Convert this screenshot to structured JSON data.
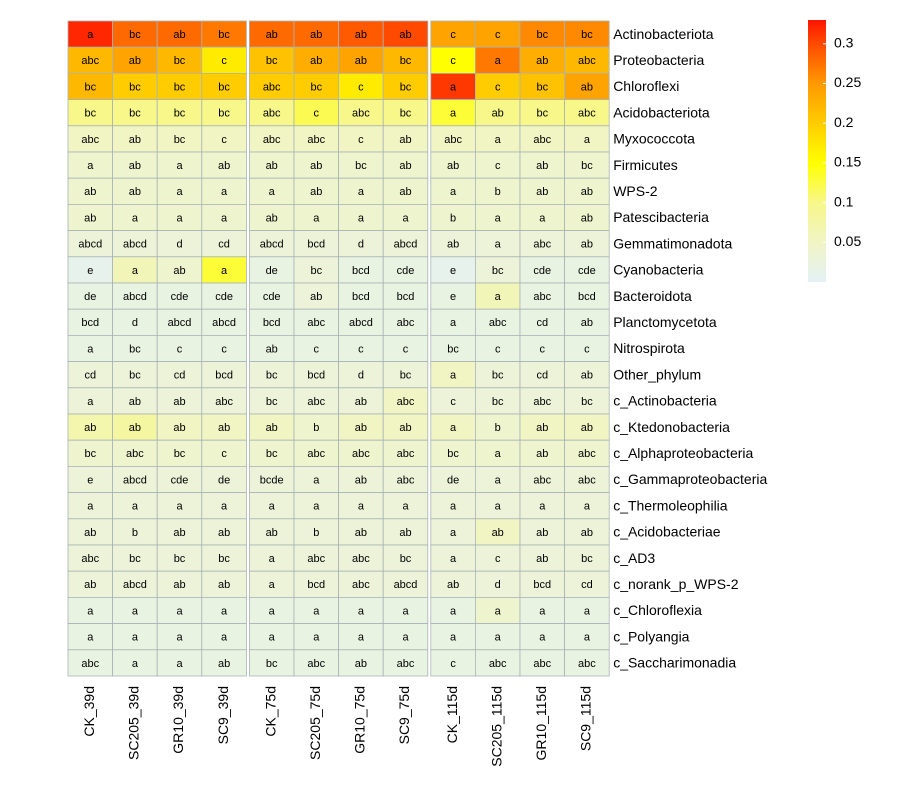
{
  "chart_data": {
    "type": "heatmap",
    "rows": [
      "Actinobacteriota",
      "Proteobacteria",
      "Chloroflexi",
      "Acidobacteriota",
      "Myxococcota",
      "Firmicutes",
      "WPS-2",
      "Patescibacteria",
      "Gemmatimonadota",
      "Cyanobacteria",
      "Bacteroidota",
      "Planctomycetota",
      "Nitrospirota",
      "Other_phylum",
      "c_Actinobacteria",
      "c_Ktedonobacteria",
      "c_Alphaproteobacteria",
      "c_Gammaproteobacteria",
      "c_Thermoleophilia",
      "c_Acidobacteriae",
      "c_AD3",
      "c_norank_p_WPS-2",
      "c_Chloroflexia",
      "c_Polyangia",
      "c_Saccharimonadia"
    ],
    "columns": [
      "CK_39d",
      "SC205_39d",
      "GR10_39d",
      "SC9_39d",
      "CK_75d",
      "SC205_75d",
      "GR10_75d",
      "SC9_75d",
      "CK_115d",
      "SC205_115d",
      "GR10_115d",
      "SC9_115d"
    ],
    "values": [
      [
        0.32,
        0.28,
        0.28,
        0.27,
        0.28,
        0.28,
        0.29,
        0.3,
        0.24,
        0.24,
        0.26,
        0.26
      ],
      [
        0.22,
        0.24,
        0.22,
        0.17,
        0.21,
        0.23,
        0.24,
        0.22,
        0.15,
        0.27,
        0.23,
        0.22
      ],
      [
        0.22,
        0.2,
        0.2,
        0.2,
        0.2,
        0.2,
        0.17,
        0.2,
        0.31,
        0.2,
        0.21,
        0.24
      ],
      [
        0.1,
        0.1,
        0.1,
        0.1,
        0.1,
        0.12,
        0.1,
        0.1,
        0.13,
        0.1,
        0.1,
        0.1
      ],
      [
        0.05,
        0.05,
        0.05,
        0.05,
        0.05,
        0.05,
        0.05,
        0.05,
        0.05,
        0.05,
        0.05,
        0.05
      ],
      [
        0.04,
        0.04,
        0.04,
        0.04,
        0.04,
        0.04,
        0.04,
        0.04,
        0.04,
        0.04,
        0.04,
        0.04
      ],
      [
        0.04,
        0.04,
        0.04,
        0.04,
        0.04,
        0.04,
        0.04,
        0.04,
        0.04,
        0.04,
        0.04,
        0.04
      ],
      [
        0.04,
        0.04,
        0.04,
        0.04,
        0.04,
        0.04,
        0.04,
        0.04,
        0.04,
        0.04,
        0.04,
        0.04
      ],
      [
        0.03,
        0.03,
        0.03,
        0.03,
        0.03,
        0.03,
        0.03,
        0.03,
        0.03,
        0.03,
        0.03,
        0.03
      ],
      [
        0.01,
        0.06,
        0.04,
        0.13,
        0.02,
        0.03,
        0.02,
        0.02,
        0.01,
        0.03,
        0.02,
        0.02
      ],
      [
        0.02,
        0.02,
        0.02,
        0.02,
        0.02,
        0.03,
        0.02,
        0.02,
        0.02,
        0.06,
        0.02,
        0.02
      ],
      [
        0.02,
        0.02,
        0.02,
        0.02,
        0.02,
        0.02,
        0.02,
        0.02,
        0.02,
        0.02,
        0.02,
        0.02
      ],
      [
        0.02,
        0.02,
        0.02,
        0.02,
        0.02,
        0.02,
        0.02,
        0.02,
        0.02,
        0.02,
        0.02,
        0.02
      ],
      [
        0.03,
        0.03,
        0.03,
        0.03,
        0.03,
        0.03,
        0.03,
        0.03,
        0.05,
        0.03,
        0.03,
        0.03
      ],
      [
        0.03,
        0.03,
        0.03,
        0.03,
        0.03,
        0.03,
        0.03,
        0.05,
        0.03,
        0.03,
        0.03,
        0.03
      ],
      [
        0.07,
        0.08,
        0.05,
        0.05,
        0.05,
        0.04,
        0.05,
        0.05,
        0.05,
        0.04,
        0.05,
        0.05
      ],
      [
        0.04,
        0.04,
        0.04,
        0.04,
        0.04,
        0.04,
        0.04,
        0.04,
        0.04,
        0.04,
        0.04,
        0.04
      ],
      [
        0.03,
        0.03,
        0.03,
        0.03,
        0.03,
        0.03,
        0.03,
        0.03,
        0.03,
        0.03,
        0.03,
        0.03
      ],
      [
        0.03,
        0.03,
        0.03,
        0.03,
        0.03,
        0.03,
        0.03,
        0.03,
        0.03,
        0.03,
        0.03,
        0.03
      ],
      [
        0.03,
        0.03,
        0.03,
        0.03,
        0.03,
        0.03,
        0.03,
        0.03,
        0.03,
        0.05,
        0.03,
        0.03
      ],
      [
        0.03,
        0.03,
        0.03,
        0.03,
        0.03,
        0.03,
        0.03,
        0.03,
        0.03,
        0.03,
        0.03,
        0.03
      ],
      [
        0.03,
        0.03,
        0.03,
        0.03,
        0.03,
        0.03,
        0.03,
        0.03,
        0.03,
        0.03,
        0.03,
        0.03
      ],
      [
        0.02,
        0.02,
        0.02,
        0.02,
        0.02,
        0.02,
        0.02,
        0.02,
        0.02,
        0.04,
        0.02,
        0.02
      ],
      [
        0.02,
        0.02,
        0.02,
        0.02,
        0.02,
        0.02,
        0.02,
        0.02,
        0.02,
        0.02,
        0.02,
        0.02
      ],
      [
        0.02,
        0.02,
        0.02,
        0.02,
        0.02,
        0.02,
        0.02,
        0.02,
        0.02,
        0.02,
        0.02,
        0.02
      ]
    ],
    "cell_labels": [
      [
        "a",
        "bc",
        "ab",
        "bc",
        "ab",
        "ab",
        "ab",
        "ab",
        "c",
        "c",
        "bc",
        "bc"
      ],
      [
        "abc",
        "ab",
        "bc",
        "c",
        "bc",
        "ab",
        "ab",
        "bc",
        "c",
        "a",
        "ab",
        "abc"
      ],
      [
        "bc",
        "bc",
        "bc",
        "bc",
        "abc",
        "bc",
        "c",
        "bc",
        "a",
        "c",
        "bc",
        "ab"
      ],
      [
        "bc",
        "bc",
        "bc",
        "bc",
        "abc",
        "c",
        "abc",
        "bc",
        "a",
        "ab",
        "bc",
        "abc"
      ],
      [
        "abc",
        "ab",
        "bc",
        "c",
        "abc",
        "abc",
        "c",
        "ab",
        "abc",
        "a",
        "abc",
        "a"
      ],
      [
        "a",
        "ab",
        "a",
        "ab",
        "ab",
        "ab",
        "bc",
        "ab",
        "ab",
        "c",
        "ab",
        "bc"
      ],
      [
        "ab",
        "ab",
        "a",
        "a",
        "a",
        "ab",
        "a",
        "ab",
        "a",
        "b",
        "ab",
        "ab"
      ],
      [
        "ab",
        "a",
        "a",
        "a",
        "ab",
        "a",
        "a",
        "a",
        "b",
        "a",
        "a",
        "ab"
      ],
      [
        "abcd",
        "abcd",
        "d",
        "cd",
        "abcd",
        "bcd",
        "d",
        "abcd",
        "ab",
        "a",
        "abc",
        "ab"
      ],
      [
        "e",
        "a",
        "ab",
        "a",
        "de",
        "bc",
        "bcd",
        "cde",
        "e",
        "bc",
        "cde",
        "cde"
      ],
      [
        "de",
        "abcd",
        "cde",
        "cde",
        "cde",
        "ab",
        "bcd",
        "bcd",
        "e",
        "a",
        "abc",
        "bcd"
      ],
      [
        "bcd",
        "d",
        "abcd",
        "abcd",
        "bcd",
        "abc",
        "abcd",
        "abc",
        "a",
        "abc",
        "cd",
        "ab"
      ],
      [
        "a",
        "bc",
        "c",
        "c",
        "ab",
        "c",
        "c",
        "c",
        "bc",
        "c",
        "c",
        "c"
      ],
      [
        "cd",
        "bc",
        "cd",
        "bcd",
        "bc",
        "bcd",
        "d",
        "bc",
        "a",
        "bc",
        "cd",
        "ab"
      ],
      [
        "a",
        "ab",
        "ab",
        "abc",
        "bc",
        "abc",
        "ab",
        "abc",
        "c",
        "bc",
        "abc",
        "bc"
      ],
      [
        "ab",
        "ab",
        "ab",
        "ab",
        "ab",
        "b",
        "ab",
        "ab",
        "a",
        "b",
        "ab",
        "ab"
      ],
      [
        "bc",
        "abc",
        "bc",
        "c",
        "bc",
        "abc",
        "abc",
        "abc",
        "bc",
        "a",
        "ab",
        "abc"
      ],
      [
        "e",
        "abcd",
        "cde",
        "de",
        "bcde",
        "a",
        "ab",
        "abc",
        "de",
        "a",
        "abc",
        "abc"
      ],
      [
        "a",
        "a",
        "a",
        "a",
        "a",
        "a",
        "a",
        "a",
        "a",
        "a",
        "a",
        "a"
      ],
      [
        "ab",
        "b",
        "ab",
        "ab",
        "ab",
        "b",
        "ab",
        "ab",
        "a",
        "ab",
        "ab",
        "ab"
      ],
      [
        "abc",
        "bc",
        "bc",
        "bc",
        "a",
        "abc",
        "abc",
        "bc",
        "a",
        "c",
        "ab",
        "bc"
      ],
      [
        "ab",
        "abcd",
        "ab",
        "ab",
        "a",
        "bcd",
        "abc",
        "abcd",
        "ab",
        "d",
        "bcd",
        "cd"
      ],
      [
        "a",
        "a",
        "a",
        "a",
        "a",
        "a",
        "a",
        "a",
        "a",
        "a",
        "a",
        "a"
      ],
      [
        "a",
        "a",
        "a",
        "a",
        "a",
        "a",
        "a",
        "a",
        "a",
        "a",
        "a",
        "a"
      ],
      [
        "abc",
        "a",
        "a",
        "ab",
        "bc",
        "abc",
        "ab",
        "abc",
        "c",
        "abc",
        "abc",
        "abc"
      ]
    ],
    "zlim": [
      0,
      0.33
    ],
    "zticks": [
      0.05,
      0.1,
      0.15,
      0.2,
      0.25,
      0.3
    ],
    "colorscale": [
      {
        "at": 0,
        "color": "#e4f1f6"
      },
      {
        "at": 0.05,
        "color": "#f1f5c4"
      },
      {
        "at": 0.1,
        "color": "#f7f78a"
      },
      {
        "at": 0.15,
        "color": "#ffff00"
      },
      {
        "at": 0.2,
        "color": "#ffcc00"
      },
      {
        "at": 0.25,
        "color": "#ff9900"
      },
      {
        "at": 0.3,
        "color": "#ff4a00"
      },
      {
        "at": 0.33,
        "color": "#ff1500"
      }
    ]
  }
}
